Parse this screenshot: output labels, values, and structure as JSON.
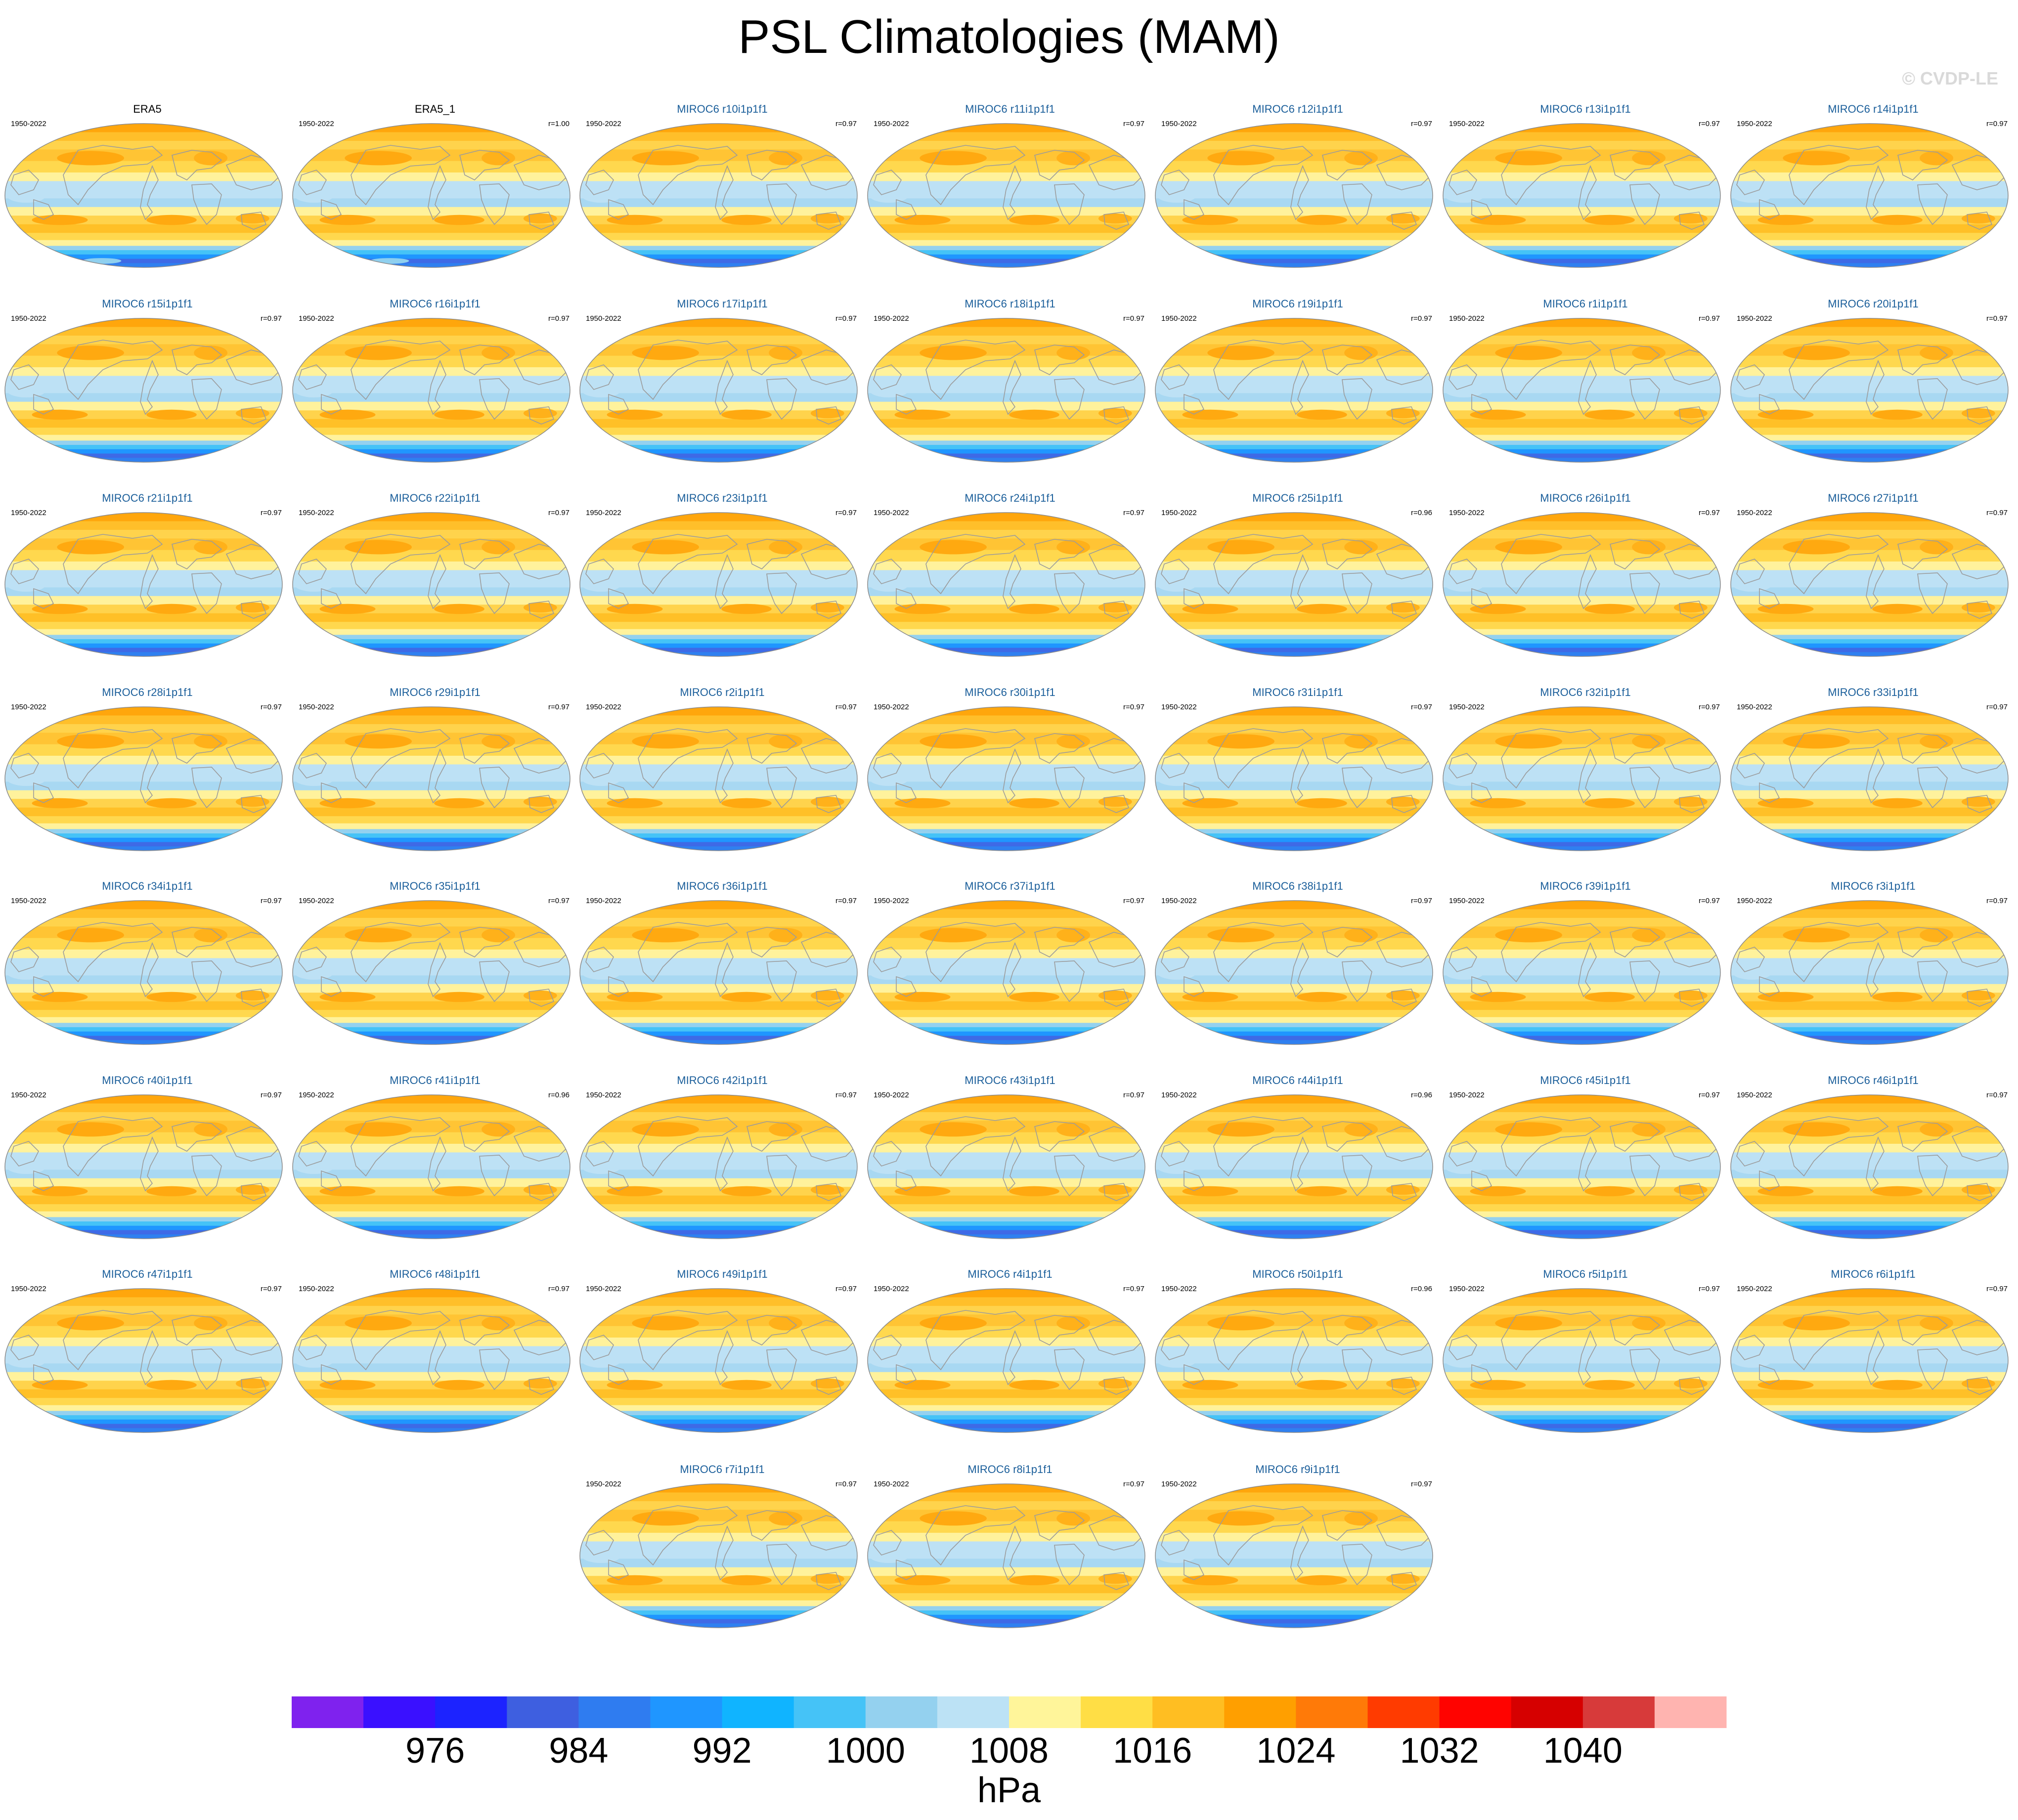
{
  "title": "PSL Climatologies (MAM)",
  "watermark": "© CVDP-LE",
  "chart_data": {
    "type": "contour-map-panels",
    "projection": "robinson",
    "period": "1950-2022",
    "variable": "PSL",
    "season": "MAM",
    "units": "hPa",
    "panels": [
      {
        "title": "ERA5",
        "years": "1950-2022",
        "r": "",
        "observation": true
      },
      {
        "title": "ERA5_1",
        "years": "1950-2022",
        "r": "r=1.00",
        "observation": true
      },
      {
        "title": "MIROC6 r10i1p1f1",
        "years": "1950-2022",
        "r": "r=0.97"
      },
      {
        "title": "MIROC6 r11i1p1f1",
        "years": "1950-2022",
        "r": "r=0.97"
      },
      {
        "title": "MIROC6 r12i1p1f1",
        "years": "1950-2022",
        "r": "r=0.97"
      },
      {
        "title": "MIROC6 r13i1p1f1",
        "years": "1950-2022",
        "r": "r=0.97"
      },
      {
        "title": "MIROC6 r14i1p1f1",
        "years": "1950-2022",
        "r": "r=0.97"
      },
      {
        "title": "MIROC6 r15i1p1f1",
        "years": "1950-2022",
        "r": "r=0.97"
      },
      {
        "title": "MIROC6 r16i1p1f1",
        "years": "1950-2022",
        "r": "r=0.97"
      },
      {
        "title": "MIROC6 r17i1p1f1",
        "years": "1950-2022",
        "r": "r=0.97"
      },
      {
        "title": "MIROC6 r18i1p1f1",
        "years": "1950-2022",
        "r": "r=0.97"
      },
      {
        "title": "MIROC6 r19i1p1f1",
        "years": "1950-2022",
        "r": "r=0.97"
      },
      {
        "title": "MIROC6 r1i1p1f1",
        "years": "1950-2022",
        "r": "r=0.97"
      },
      {
        "title": "MIROC6 r20i1p1f1",
        "years": "1950-2022",
        "r": "r=0.97"
      },
      {
        "title": "MIROC6 r21i1p1f1",
        "years": "1950-2022",
        "r": "r=0.97"
      },
      {
        "title": "MIROC6 r22i1p1f1",
        "years": "1950-2022",
        "r": "r=0.97"
      },
      {
        "title": "MIROC6 r23i1p1f1",
        "years": "1950-2022",
        "r": "r=0.97"
      },
      {
        "title": "MIROC6 r24i1p1f1",
        "years": "1950-2022",
        "r": "r=0.97"
      },
      {
        "title": "MIROC6 r25i1p1f1",
        "years": "1950-2022",
        "r": "r=0.96"
      },
      {
        "title": "MIROC6 r26i1p1f1",
        "years": "1950-2022",
        "r": "r=0.97"
      },
      {
        "title": "MIROC6 r27i1p1f1",
        "years": "1950-2022",
        "r": "r=0.97"
      },
      {
        "title": "MIROC6 r28i1p1f1",
        "years": "1950-2022",
        "r": "r=0.97"
      },
      {
        "title": "MIROC6 r29i1p1f1",
        "years": "1950-2022",
        "r": "r=0.97"
      },
      {
        "title": "MIROC6 r2i1p1f1",
        "years": "1950-2022",
        "r": "r=0.97"
      },
      {
        "title": "MIROC6 r30i1p1f1",
        "years": "1950-2022",
        "r": "r=0.97"
      },
      {
        "title": "MIROC6 r31i1p1f1",
        "years": "1950-2022",
        "r": "r=0.97"
      },
      {
        "title": "MIROC6 r32i1p1f1",
        "years": "1950-2022",
        "r": "r=0.97"
      },
      {
        "title": "MIROC6 r33i1p1f1",
        "years": "1950-2022",
        "r": "r=0.97"
      },
      {
        "title": "MIROC6 r34i1p1f1",
        "years": "1950-2022",
        "r": "r=0.97"
      },
      {
        "title": "MIROC6 r35i1p1f1",
        "years": "1950-2022",
        "r": "r=0.97"
      },
      {
        "title": "MIROC6 r36i1p1f1",
        "years": "1950-2022",
        "r": "r=0.97"
      },
      {
        "title": "MIROC6 r37i1p1f1",
        "years": "1950-2022",
        "r": "r=0.97"
      },
      {
        "title": "MIROC6 r38i1p1f1",
        "years": "1950-2022",
        "r": "r=0.97"
      },
      {
        "title": "MIROC6 r39i1p1f1",
        "years": "1950-2022",
        "r": "r=0.97"
      },
      {
        "title": "MIROC6 r3i1p1f1",
        "years": "1950-2022",
        "r": "r=0.97"
      },
      {
        "title": "MIROC6 r40i1p1f1",
        "years": "1950-2022",
        "r": "r=0.97"
      },
      {
        "title": "MIROC6 r41i1p1f1",
        "years": "1950-2022",
        "r": "r=0.96"
      },
      {
        "title": "MIROC6 r42i1p1f1",
        "years": "1950-2022",
        "r": "r=0.97"
      },
      {
        "title": "MIROC6 r43i1p1f1",
        "years": "1950-2022",
        "r": "r=0.97"
      },
      {
        "title": "MIROC6 r44i1p1f1",
        "years": "1950-2022",
        "r": "r=0.96"
      },
      {
        "title": "MIROC6 r45i1p1f1",
        "years": "1950-2022",
        "r": "r=0.97"
      },
      {
        "title": "MIROC6 r46i1p1f1",
        "years": "1950-2022",
        "r": "r=0.97"
      },
      {
        "title": "MIROC6 r47i1p1f1",
        "years": "1950-2022",
        "r": "r=0.97"
      },
      {
        "title": "MIROC6 r48i1p1f1",
        "years": "1950-2022",
        "r": "r=0.97"
      },
      {
        "title": "MIROC6 r49i1p1f1",
        "years": "1950-2022",
        "r": "r=0.97"
      },
      {
        "title": "MIROC6 r4i1p1f1",
        "years": "1950-2022",
        "r": "r=0.97"
      },
      {
        "title": "MIROC6 r50i1p1f1",
        "years": "1950-2022",
        "r": "r=0.96"
      },
      {
        "title": "MIROC6 r5i1p1f1",
        "years": "1950-2022",
        "r": "r=0.97"
      },
      {
        "title": "MIROC6 r6i1p1f1",
        "years": "1950-2022",
        "r": "r=0.97"
      },
      {
        "title": "MIROC6 r7i1p1f1",
        "years": "1950-2022",
        "r": "r=0.97"
      },
      {
        "title": "MIROC6 r8i1p1f1",
        "years": "1950-2022",
        "r": "r=0.97"
      },
      {
        "title": "MIROC6 r9i1p1f1",
        "years": "1950-2022",
        "r": "r=0.97"
      }
    ],
    "colorbar": {
      "label": "hPa",
      "levels": [
        972,
        976,
        980,
        984,
        988,
        992,
        996,
        1000,
        1004,
        1008,
        1012,
        1016,
        1020,
        1024,
        1028,
        1032,
        1036,
        1040,
        1044
      ],
      "tick_labels": [
        "976",
        "984",
        "992",
        "1000",
        "1008",
        "1016",
        "1024",
        "1032",
        "1040"
      ],
      "tick_values": [
        976,
        984,
        992,
        1000,
        1008,
        1016,
        1024,
        1032,
        1040
      ],
      "colors": [
        "#7f22ee",
        "#3a10ff",
        "#1c23ff",
        "#3e5fe0",
        "#2f7cf0",
        "#1f96ff",
        "#10b4ff",
        "#45c3f7",
        "#94d1ef",
        "#bce2f5",
        "#fff59a",
        "#ffde45",
        "#ffbe22",
        "#ff9f00",
        "#ff7a08",
        "#ff3b00",
        "#ff0300",
        "#d60000",
        "#d73a3a",
        "#ffb4b0"
      ]
    }
  }
}
